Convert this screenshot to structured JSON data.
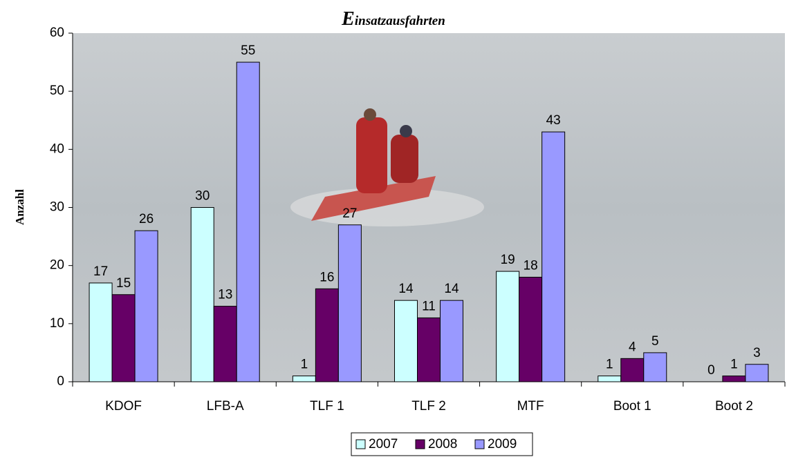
{
  "chart_data": {
    "type": "bar",
    "title": "Einsatzausfahrten",
    "y_label": "Anzahl",
    "categories": [
      "KDOF",
      "LFB-A",
      "TLF 1",
      "TLF 2",
      "MTF",
      "Boot 1",
      "Boot 2"
    ],
    "series": [
      {
        "name": "2007",
        "color": "#ccffff",
        "values": [
          17,
          30,
          1,
          14,
          19,
          1,
          0
        ]
      },
      {
        "name": "2008",
        "color": "#660066",
        "values": [
          15,
          13,
          16,
          11,
          18,
          4,
          1
        ]
      },
      {
        "name": "2009",
        "color": "#9999ff",
        "values": [
          26,
          55,
          27,
          14,
          43,
          5,
          3
        ]
      }
    ],
    "ylim": [
      0,
      60
    ],
    "yticks": [
      0,
      10,
      20,
      30,
      40,
      50,
      60
    ],
    "legend": "bottom"
  }
}
